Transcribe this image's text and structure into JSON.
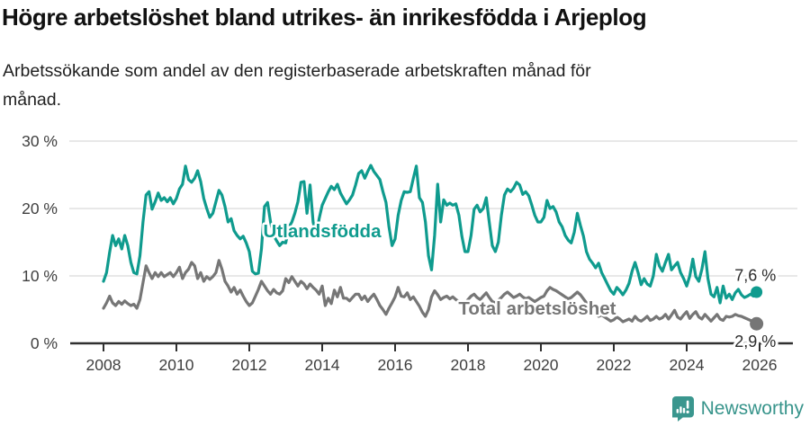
{
  "header": {
    "title": "Högre arbetslöshet bland utrikes- än inrikesfödda i Arjeplog",
    "subtitle": "Arbetssökande som andel av den registerbaserade arbetskraften månad för månad."
  },
  "footer": {
    "brand": "Newsworthy",
    "brand_color": "#37948b",
    "logo_icon": "speech-bubble-bar-chart-icon"
  },
  "chart_data": {
    "type": "line",
    "title": "Högre arbetslöshet bland utrikes- än inrikesfödda i Arjeplog",
    "subtitle": "Arbetssökande som andel av den registerbaserade arbetskraften månad för månad.",
    "xlabel": "",
    "ylabel": "",
    "x_start_year": 2008,
    "points_per_year": 12,
    "x_ticks": [
      2008,
      2010,
      2012,
      2014,
      2016,
      2018,
      2020,
      2022,
      2024,
      2026
    ],
    "ylim": [
      0,
      30
    ],
    "y_ticks": [
      {
        "value": 0,
        "label": "0 %"
      },
      {
        "value": 10,
        "label": "10 %"
      },
      {
        "value": 20,
        "label": "20 %"
      },
      {
        "value": 30,
        "label": "30 %"
      }
    ],
    "grid": true,
    "legend_position": "inline-labels",
    "colors": {
      "grid": "#e0e0e0",
      "axis": "#2f2f2f",
      "tick_text": "#3f3f3f",
      "end_label_text": "#2b2b2b"
    },
    "series": [
      {
        "name": "Utlandsfödda",
        "color": "#0f9b8e",
        "end_label": "7,6 %",
        "end_value": 7.6,
        "label_anchor": {
          "year": 2014.0,
          "value": 16.7
        },
        "end_label_anchor": {
          "year": 2026.45,
          "value": 10.1
        },
        "dot_radius": 6.5,
        "values": [
          9.2,
          10.5,
          13.5,
          16.0,
          14.5,
          15.5,
          14.0,
          16.0,
          14.5,
          12.0,
          10.5,
          10.3,
          13.0,
          18.0,
          22.0,
          22.5,
          19.9,
          21.0,
          22.3,
          21.2,
          21.6,
          21.0,
          21.6,
          20.7,
          21.5,
          22.9,
          23.6,
          26.3,
          24.3,
          23.9,
          24.5,
          25.6,
          24.0,
          21.5,
          20.0,
          18.7,
          19.3,
          21.0,
          22.7,
          22.0,
          20.3,
          18.0,
          18.5,
          16.7,
          16.0,
          15.5,
          15.9,
          14.9,
          13.6,
          10.7,
          10.3,
          10.4,
          14.0,
          20.3,
          20.9,
          18.0,
          16.0,
          15.2,
          14.5,
          15.0,
          14.9,
          17.2,
          18.0,
          19.3,
          21.0,
          23.9,
          24.0,
          19.3,
          23.5,
          18.0,
          15.9,
          18.5,
          20.5,
          21.5,
          22.5,
          23.3,
          22.8,
          23.6,
          22.3,
          21.5,
          20.7,
          21.3,
          22.0,
          23.5,
          25.2,
          25.6,
          24.5,
          25.5,
          26.4,
          25.5,
          24.9,
          24.3,
          22.5,
          20.9,
          17.3,
          14.5,
          15.5,
          19.0,
          21.2,
          22.5,
          22.4,
          22.5,
          24.5,
          26.3,
          21.6,
          20.9,
          18.0,
          13.0,
          10.9,
          16.0,
          23.6,
          18.0,
          21.3,
          20.5,
          20.8,
          20.5,
          20.7,
          19.0,
          15.9,
          13.6,
          13.6,
          16.0,
          19.9,
          20.5,
          19.5,
          20.0,
          21.6,
          18.0,
          14.5,
          13.6,
          15.0,
          19.0,
          22.0,
          22.9,
          22.5,
          23.0,
          23.9,
          23.5,
          22.1,
          22.5,
          21.9,
          20.5,
          19.0,
          18.0,
          18.0,
          18.7,
          21.2,
          20.0,
          20.3,
          19.5,
          18.0,
          17.3,
          16.0,
          15.3,
          14.9,
          16.5,
          19.3,
          17.5,
          15.9,
          13.6,
          12.5,
          11.9,
          11.2,
          11.9,
          10.5,
          9.6,
          8.7,
          7.8,
          7.3,
          8.3,
          7.8,
          7.2,
          7.9,
          8.9,
          10.7,
          12.0,
          10.5,
          8.7,
          9.6,
          8.8,
          8.5,
          10.0,
          13.2,
          11.5,
          10.7,
          12.0,
          13.2,
          10.9,
          11.5,
          12.0,
          10.5,
          9.6,
          8.5,
          10.0,
          12.5,
          9.9,
          9.2,
          11.0,
          13.6,
          9.6,
          7.3,
          6.9,
          8.3,
          6.0,
          8.5,
          6.7,
          7.3,
          6.5,
          7.5,
          8.0,
          7.2,
          6.8,
          7.0,
          7.3,
          7.0,
          7.6
        ]
      },
      {
        "name": "Total arbetslöshet",
        "color": "#767676",
        "end_label": "2,9 %",
        "end_value": 2.9,
        "label_anchor": {
          "year": 2019.9,
          "value": 5.2
        },
        "end_label_anchor": {
          "year": 2026.45,
          "value": 0.3
        },
        "dot_radius": 7.5,
        "values": [
          5.2,
          6.0,
          7.0,
          6.0,
          5.6,
          6.2,
          5.8,
          6.3,
          5.9,
          5.6,
          5.8,
          5.2,
          6.5,
          9.0,
          11.5,
          10.5,
          9.6,
          10.5,
          9.9,
          10.5,
          9.9,
          10.2,
          10.5,
          9.9,
          10.5,
          11.3,
          9.6,
          10.5,
          11.0,
          12.0,
          11.5,
          9.6,
          10.5,
          9.2,
          9.9,
          9.5,
          9.9,
          10.5,
          12.3,
          11.0,
          9.2,
          8.5,
          7.6,
          8.3,
          7.3,
          7.9,
          7.0,
          6.2,
          5.6,
          6.0,
          7.0,
          8.0,
          9.2,
          8.5,
          7.8,
          7.3,
          8.0,
          7.5,
          7.3,
          7.8,
          9.6,
          9.0,
          9.9,
          9.2,
          8.5,
          9.2,
          8.8,
          8.1,
          8.8,
          8.3,
          7.9,
          7.3,
          8.5,
          5.6,
          6.7,
          5.9,
          7.9,
          6.9,
          8.3,
          6.7,
          6.7,
          6.3,
          6.8,
          7.3,
          7.3,
          6.5,
          7.0,
          6.2,
          6.8,
          7.3,
          6.5,
          5.6,
          5.0,
          4.3,
          5.2,
          6.0,
          6.9,
          8.3,
          7.0,
          6.9,
          7.5,
          6.5,
          6.9,
          6.2,
          5.5,
          4.6,
          4.0,
          5.0,
          6.9,
          7.8,
          7.2,
          6.5,
          6.8,
          7.0,
          6.6,
          6.9,
          6.5,
          6.2,
          5.8,
          6.0,
          6.5,
          7.0,
          7.3,
          6.8,
          6.5,
          7.0,
          7.5,
          6.8,
          6.2,
          6.0,
          6.4,
          6.8,
          7.3,
          7.6,
          7.2,
          6.8,
          7.0,
          7.3,
          6.9,
          6.6,
          6.8,
          6.5,
          6.2,
          6.5,
          6.8,
          7.0,
          7.8,
          8.3,
          8.0,
          7.8,
          7.5,
          7.2,
          6.9,
          6.6,
          6.8,
          7.2,
          7.6,
          7.2,
          6.6,
          6.0,
          5.5,
          5.0,
          4.5,
          4.0,
          4.2,
          3.9,
          3.6,
          3.3,
          3.5,
          3.9,
          3.6,
          3.2,
          3.4,
          3.6,
          3.3,
          4.0,
          3.5,
          3.3,
          3.6,
          4.0,
          3.4,
          3.6,
          4.0,
          3.6,
          3.8,
          4.3,
          3.6,
          4.2,
          4.9,
          3.9,
          3.6,
          4.2,
          4.7,
          3.7,
          4.3,
          4.7,
          3.9,
          3.6,
          4.3,
          3.8,
          3.3,
          3.8,
          4.3,
          3.6,
          3.4,
          4.0,
          3.9,
          4.0,
          4.3,
          4.1,
          4.0,
          3.8,
          3.6,
          3.4,
          3.2,
          2.9
        ]
      }
    ]
  }
}
